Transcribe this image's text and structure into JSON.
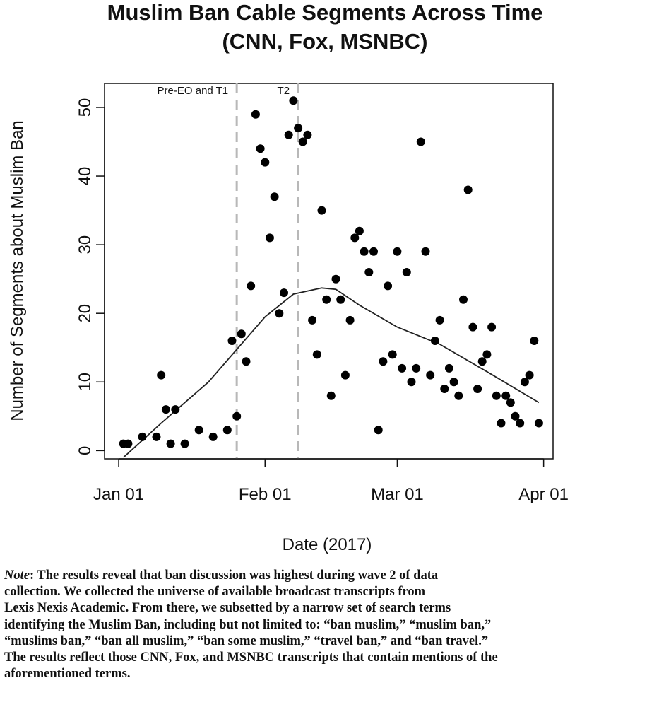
{
  "chart_data": {
    "type": "scatter",
    "title": [
      "Muslim Ban Cable Segments Across Time",
      "(CNN, Fox, MSNBC)"
    ],
    "xlabel": "Date (2017)",
    "ylabel": "Number of Segments about Muslim Ban",
    "x_ticks": [
      {
        "date": "2017-01-01",
        "label": "Jan 01"
      },
      {
        "date": "2017-02-01",
        "label": "Feb 01"
      },
      {
        "date": "2017-03-01",
        "label": "Mar 01"
      },
      {
        "date": "2017-04-01",
        "label": "Apr 01"
      }
    ],
    "y_ticks": [
      0,
      10,
      20,
      30,
      40,
      50
    ],
    "xlim": [
      "2016-12-29",
      "2017-04-03"
    ],
    "ylim": [
      -1.2,
      53.5
    ],
    "grid": false,
    "period_markers": [
      {
        "date": "2017-01-26",
        "label": "Pre-EO and T1"
      },
      {
        "date": "2017-02-08",
        "label": "T2"
      }
    ],
    "points": [
      {
        "x": "2017-01-02",
        "y": 1
      },
      {
        "x": "2017-01-03",
        "y": 1
      },
      {
        "x": "2017-01-06",
        "y": 2
      },
      {
        "x": "2017-01-09",
        "y": 2
      },
      {
        "x": "2017-01-10",
        "y": 11
      },
      {
        "x": "2017-01-11",
        "y": 6
      },
      {
        "x": "2017-01-12",
        "y": 1
      },
      {
        "x": "2017-01-13",
        "y": 6
      },
      {
        "x": "2017-01-15",
        "y": 1
      },
      {
        "x": "2017-01-18",
        "y": 3
      },
      {
        "x": "2017-01-21",
        "y": 2
      },
      {
        "x": "2017-01-24",
        "y": 3
      },
      {
        "x": "2017-01-25",
        "y": 16
      },
      {
        "x": "2017-01-26",
        "y": 5
      },
      {
        "x": "2017-01-27",
        "y": 17
      },
      {
        "x": "2017-01-28",
        "y": 13
      },
      {
        "x": "2017-01-29",
        "y": 24
      },
      {
        "x": "2017-01-30",
        "y": 49
      },
      {
        "x": "2017-01-31",
        "y": 44
      },
      {
        "x": "2017-02-01",
        "y": 42
      },
      {
        "x": "2017-02-02",
        "y": 31
      },
      {
        "x": "2017-02-03",
        "y": 37
      },
      {
        "x": "2017-02-04",
        "y": 20
      },
      {
        "x": "2017-02-05",
        "y": 23
      },
      {
        "x": "2017-02-06",
        "y": 46
      },
      {
        "x": "2017-02-07",
        "y": 51
      },
      {
        "x": "2017-02-08",
        "y": 47
      },
      {
        "x": "2017-02-09",
        "y": 45
      },
      {
        "x": "2017-02-10",
        "y": 46
      },
      {
        "x": "2017-02-11",
        "y": 19
      },
      {
        "x": "2017-02-12",
        "y": 14
      },
      {
        "x": "2017-02-13",
        "y": 35
      },
      {
        "x": "2017-02-14",
        "y": 22
      },
      {
        "x": "2017-02-15",
        "y": 8
      },
      {
        "x": "2017-02-16",
        "y": 25
      },
      {
        "x": "2017-02-17",
        "y": 22
      },
      {
        "x": "2017-02-18",
        "y": 11
      },
      {
        "x": "2017-02-19",
        "y": 19
      },
      {
        "x": "2017-02-20",
        "y": 31
      },
      {
        "x": "2017-02-21",
        "y": 32
      },
      {
        "x": "2017-02-22",
        "y": 29
      },
      {
        "x": "2017-02-23",
        "y": 26
      },
      {
        "x": "2017-02-24",
        "y": 29
      },
      {
        "x": "2017-02-25",
        "y": 3
      },
      {
        "x": "2017-02-26",
        "y": 13
      },
      {
        "x": "2017-02-27",
        "y": 24
      },
      {
        "x": "2017-02-28",
        "y": 14
      },
      {
        "x": "2017-03-01",
        "y": 29
      },
      {
        "x": "2017-03-02",
        "y": 12
      },
      {
        "x": "2017-03-03",
        "y": 26
      },
      {
        "x": "2017-03-04",
        "y": 10
      },
      {
        "x": "2017-03-05",
        "y": 12
      },
      {
        "x": "2017-03-06",
        "y": 45
      },
      {
        "x": "2017-03-07",
        "y": 29
      },
      {
        "x": "2017-03-08",
        "y": 11
      },
      {
        "x": "2017-03-09",
        "y": 16
      },
      {
        "x": "2017-03-10",
        "y": 19
      },
      {
        "x": "2017-03-11",
        "y": 9
      },
      {
        "x": "2017-03-12",
        "y": 12
      },
      {
        "x": "2017-03-13",
        "y": 10
      },
      {
        "x": "2017-03-14",
        "y": 8
      },
      {
        "x": "2017-03-15",
        "y": 22
      },
      {
        "x": "2017-03-16",
        "y": 38
      },
      {
        "x": "2017-03-17",
        "y": 18
      },
      {
        "x": "2017-03-18",
        "y": 9
      },
      {
        "x": "2017-03-19",
        "y": 13
      },
      {
        "x": "2017-03-20",
        "y": 14
      },
      {
        "x": "2017-03-21",
        "y": 18
      },
      {
        "x": "2017-03-22",
        "y": 8
      },
      {
        "x": "2017-03-23",
        "y": 4
      },
      {
        "x": "2017-03-24",
        "y": 8
      },
      {
        "x": "2017-03-25",
        "y": 7
      },
      {
        "x": "2017-03-26",
        "y": 5
      },
      {
        "x": "2017-03-27",
        "y": 4
      },
      {
        "x": "2017-03-28",
        "y": 10
      },
      {
        "x": "2017-03-29",
        "y": 11
      },
      {
        "x": "2017-03-30",
        "y": 16
      },
      {
        "x": "2017-03-31",
        "y": 4
      }
    ],
    "smoothed_line": [
      {
        "x": "2017-01-02",
        "y": -1
      },
      {
        "x": "2017-01-10",
        "y": 4
      },
      {
        "x": "2017-01-20",
        "y": 10
      },
      {
        "x": "2017-02-01",
        "y": 19.5
      },
      {
        "x": "2017-02-07",
        "y": 22.8
      },
      {
        "x": "2017-02-13",
        "y": 23.7
      },
      {
        "x": "2017-02-16",
        "y": 23.5
      },
      {
        "x": "2017-02-21",
        "y": 21.2
      },
      {
        "x": "2017-03-01",
        "y": 18
      },
      {
        "x": "2017-03-10",
        "y": 15.5
      },
      {
        "x": "2017-03-20",
        "y": 11.5
      },
      {
        "x": "2017-03-31",
        "y": 7
      }
    ]
  },
  "note": {
    "label": "Note",
    "lines": [
      ": The results reveal that ban discussion was highest during wave 2 of data",
      "collection. We collected the universe of available broadcast transcripts from",
      "Lexis Nexis Academic. From there, we subsetted by a narrow set of search terms",
      "identifying the Muslim Ban, including but not limited to: “ban muslim,” “muslim ban,”",
      "“muslims ban,” “ban all muslim,” “ban some muslim,” “travel ban,” and “ban travel.”",
      " The results reflect those CNN, Fox, and MSNBC transcripts that contain mentions of the",
      "aforementioned terms."
    ]
  }
}
